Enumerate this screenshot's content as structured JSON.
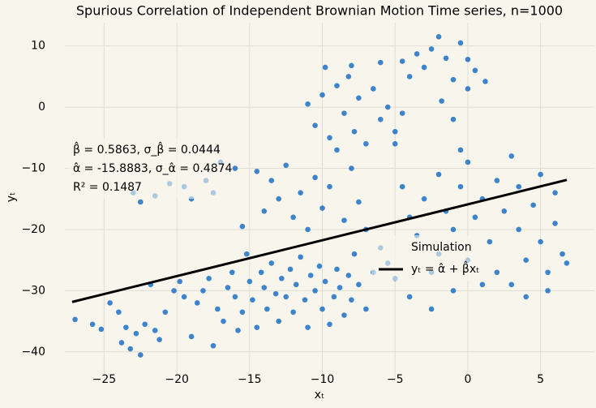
{
  "chart_data": {
    "type": "scatter",
    "title": "Spurious Correlation of Independent Brownian Motion Time series, n=1000",
    "x_label": "xₜ",
    "y_label": "yₜ",
    "annotations": [
      "β̂ = 0.5863, σ_β̂ = 0.0444",
      "α̂ = -15.8883, σ_α̂ = 0.4874",
      "R² = 0.1487"
    ],
    "xlim": [
      -27.7,
      8.7
    ],
    "ylim": [
      -44.8,
      13.8
    ],
    "xticks": [
      {
        "value": -25,
        "label": "−25"
      },
      {
        "value": -20,
        "label": "−20"
      },
      {
        "value": -15,
        "label": "−15"
      },
      {
        "value": -10,
        "label": "−10"
      },
      {
        "value": -5,
        "label": "−5"
      },
      0,
      5
    ],
    "yticks": [
      {
        "value": -40,
        "label": "−40"
      },
      {
        "value": -30,
        "label": "−30"
      },
      {
        "value": -20,
        "label": "−20"
      },
      {
        "value": -10,
        "label": "−10"
      },
      0,
      10
    ],
    "grid": true,
    "series": [
      {
        "name": "Simulation",
        "type": "scatter",
        "color": "#0f68c4",
        "x": [
          -27,
          -25.8,
          -25.2,
          -24.6,
          -24,
          -23.8,
          -23.5,
          -23.2,
          -22.8,
          -22.5,
          -22.2,
          -21.8,
          -21.5,
          -21.2,
          -20.8,
          -20.2,
          -19.8,
          -19.5,
          -19,
          -18.6,
          -18.2,
          -17.8,
          -17.5,
          -17.2,
          -16.8,
          -16.5,
          -16.2,
          -16,
          -15.8,
          -15.5,
          -15.2,
          -15,
          -14.8,
          -14.5,
          -14.2,
          -14,
          -13.8,
          -13.5,
          -13.2,
          -13,
          -12.8,
          -12.5,
          -12.2,
          -12,
          -11.8,
          -11.5,
          -11.2,
          -11,
          -10.8,
          -10.5,
          -10.2,
          -10,
          -9.8,
          -9.5,
          -9.2,
          -9,
          -8.8,
          -8.5,
          -8.2,
          -8,
          -7.8,
          -7.5,
          -7,
          -6.5,
          -16,
          -15.5,
          -14.5,
          -14,
          -13.5,
          -13,
          -12.5,
          -12,
          -11.5,
          -11,
          -10.5,
          -10,
          -9.5,
          -9,
          -8.5,
          -8,
          -7.5,
          -7,
          -11,
          -10.5,
          -10,
          -9.8,
          -9.5,
          -9,
          -8.5,
          -8.2,
          -8,
          -7.8,
          -7.5,
          -7,
          -6.5,
          -6,
          -6,
          -5.5,
          -5,
          -5,
          -4.5,
          -4.5,
          -4,
          -3.5,
          -3,
          -2.5,
          -2,
          -1.8,
          -1.5,
          -1,
          -1,
          -0.5,
          0,
          0,
          0.5,
          1.2,
          -0.5,
          -6,
          -5.5,
          -5,
          -4.5,
          -4,
          -4,
          -3.5,
          -3,
          -2.5,
          -2,
          -2,
          -1.5,
          -1,
          -1,
          -0.5,
          0,
          0,
          0.5,
          1,
          1,
          1.5,
          2,
          2,
          2.5,
          3,
          3,
          3.5,
          3.5,
          4,
          4,
          4.5,
          5,
          5,
          5.5,
          6,
          6,
          6.5,
          6.8,
          5.5,
          -2.5,
          -23,
          -22.5,
          -21.5,
          -20.5,
          -19.5,
          -19,
          -18,
          -17.5,
          -17
        ],
        "y": [
          -34.7,
          -35.5,
          -36.3,
          -32,
          -33.5,
          -38.5,
          -36,
          -39.5,
          -37,
          -40.5,
          -35.5,
          -29,
          -36.5,
          -38,
          -33.5,
          -30,
          -28.5,
          -31,
          -37.5,
          -32,
          -30,
          -28,
          -39,
          -33,
          -35,
          -29.5,
          -27,
          -31,
          -36.5,
          -33.5,
          -24,
          -28.5,
          -31.5,
          -36,
          -27,
          -29.5,
          -33,
          -25.5,
          -30.5,
          -35,
          -28,
          -31,
          -26.5,
          -33.5,
          -29,
          -24.5,
          -31.5,
          -36,
          -27.5,
          -30,
          -26,
          -33,
          -28.5,
          -35.5,
          -31,
          -26.5,
          -29.5,
          -34,
          -27.5,
          -31.5,
          -24,
          -29,
          -33,
          -27,
          -10,
          -19.5,
          -10.5,
          -17,
          -12,
          -15,
          -9.5,
          -18,
          -14,
          -20,
          -11.5,
          -16.5,
          -13,
          -7,
          -18.5,
          -10,
          -15.5,
          -20,
          0.5,
          -3,
          2,
          6.5,
          -5,
          3.5,
          -1,
          5,
          6.8,
          -4,
          1.5,
          -6,
          3,
          -2,
          7.3,
          0,
          -4,
          -6,
          -1,
          7.5,
          5,
          8.7,
          6.5,
          9.5,
          11.5,
          1,
          8,
          4.5,
          -2,
          10.5,
          7.8,
          3,
          6,
          4.2,
          -7,
          -23,
          -25.5,
          -28,
          -13,
          -18,
          -31,
          -21,
          -15,
          -27,
          -11,
          -24,
          -17,
          -30,
          -20,
          -13,
          -25,
          -9,
          -18,
          -29,
          -15,
          -22,
          -12,
          -27,
          -17,
          -29,
          -8,
          -20,
          -13,
          -25,
          -31,
          -16,
          -11,
          -22,
          -27,
          -19,
          -14,
          -24,
          -25.5,
          -30,
          -33,
          -14,
          -15.5,
          -14.5,
          -12.5,
          -13,
          -15,
          -12,
          -14,
          -9
        ]
      },
      {
        "name": "yₜ = α̂ + β̂xₜ",
        "type": "line",
        "color": "#000000",
        "x": [
          -27.2,
          6.8
        ],
        "y": [
          -31.84,
          -11.9
        ]
      }
    ]
  }
}
